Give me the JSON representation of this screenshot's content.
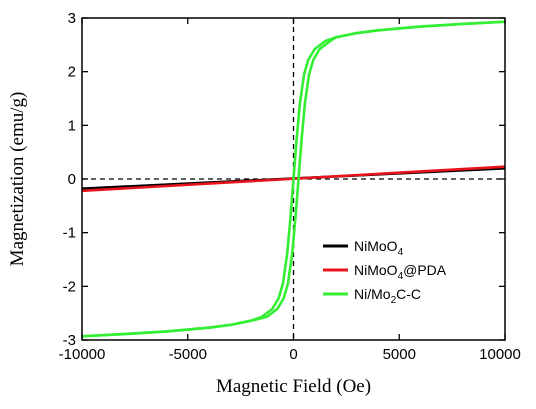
{
  "chart_data": {
    "type": "line",
    "xlabel": "Magnetic Field (Oe)",
    "ylabel": "Magnetization (emu/g)",
    "xlim": [
      -10000,
      10000
    ],
    "ylim": [
      -3,
      3
    ],
    "xticks": [
      -10000,
      -5000,
      0,
      5000,
      10000
    ],
    "xtick_labels": [
      "-10000",
      "-5000",
      "0",
      "5000",
      "10000"
    ],
    "yticks": [
      -3,
      -2,
      -1,
      0,
      1,
      2,
      3
    ],
    "ytick_labels": [
      "-3",
      "-2",
      "-1",
      "0",
      "1",
      "2",
      "3"
    ],
    "grid": false,
    "legend_position": "lower-right",
    "reference_lines": [
      {
        "orientation": "horizontal",
        "value": 0,
        "style": "dashed"
      },
      {
        "orientation": "vertical",
        "value": 0,
        "style": "dashed"
      }
    ],
    "series": [
      {
        "name": "NiMoO4",
        "legend_base": "NiMoO",
        "legend_sub": "4",
        "legend_tail": "",
        "color": "#000000",
        "x": [
          -10000,
          10000
        ],
        "y": [
          -0.18,
          0.2
        ]
      },
      {
        "name": "NiMoO4@PDA",
        "legend_base": "NiMoO",
        "legend_sub": "4",
        "legend_tail": "@PDA",
        "color": "#e8141b",
        "x": [
          -10000,
          10000
        ],
        "y": [
          -0.22,
          0.23
        ]
      },
      {
        "name": "Ni/Mo2C-C",
        "legend_base": "Ni/Mo",
        "legend_sub": "2",
        "legend_tail": "C-C",
        "color": "#33ee33",
        "x": [
          -10000,
          -8000,
          -6000,
          -4000,
          -3000,
          -2000,
          -1500,
          -1000,
          -700,
          -500,
          -300,
          -150,
          0,
          150,
          300,
          500,
          700,
          1000,
          1500,
          2000,
          3000,
          4000,
          6000,
          8000,
          10000
        ],
        "y": [
          -2.93,
          -2.89,
          -2.84,
          -2.77,
          -2.72,
          -2.64,
          -2.57,
          -2.42,
          -2.22,
          -1.95,
          -1.4,
          -0.75,
          0,
          0.75,
          1.4,
          1.95,
          2.22,
          2.42,
          2.57,
          2.64,
          2.72,
          2.77,
          2.84,
          2.89,
          2.93
        ]
      }
    ]
  }
}
